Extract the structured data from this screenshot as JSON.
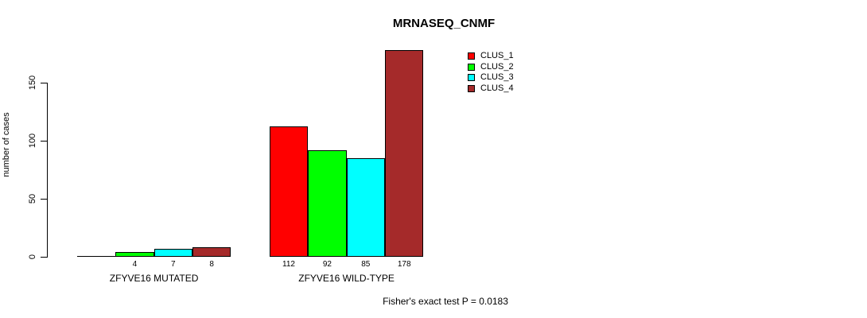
{
  "chart_data": {
    "type": "bar",
    "title": "MRNASEQ_CNMF",
    "xlabel": "",
    "ylabel": "number of cases",
    "categories": [
      "ZFYVE16 MUTATED",
      "ZFYVE16 WILD-TYPE"
    ],
    "series": [
      {
        "name": "CLUS_1",
        "color": "#FF0000",
        "values": [
          0,
          112
        ]
      },
      {
        "name": "CLUS_2",
        "color": "#00FF00",
        "values": [
          4,
          92
        ]
      },
      {
        "name": "CLUS_3",
        "color": "#00FFFF",
        "values": [
          7,
          85
        ]
      },
      {
        "name": "CLUS_4",
        "color": "#A52A2A",
        "values": [
          8,
          178
        ]
      }
    ],
    "bar_labels": [
      [
        "",
        "4",
        "7",
        "8"
      ],
      [
        "112",
        "92",
        "85",
        "178"
      ]
    ],
    "yticks": [
      0,
      50,
      100,
      150
    ],
    "ylim": [
      0,
      178
    ],
    "grid": false,
    "legend_position": "top-right",
    "annotation": "Fisher's exact test P = 0.0183",
    "axis_color": "#000000",
    "bar_border_color": "#000000"
  }
}
